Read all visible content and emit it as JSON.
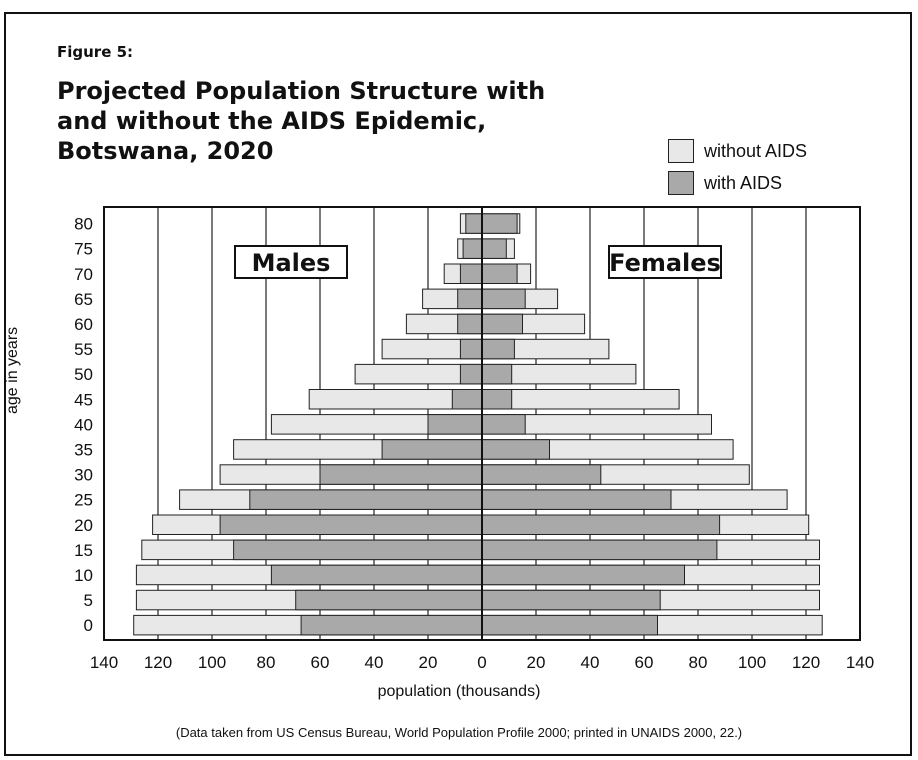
{
  "figure_label": "Figure 5:",
  "title_lines": [
    "Projected Population Structure with",
    "and without the AIDS Epidemic,",
    "Botswana, 2020"
  ],
  "legend": [
    {
      "label": "without AIDS",
      "color": "#e8e8e8"
    },
    {
      "label": "with AIDS",
      "color": "#a9a9a9"
    }
  ],
  "source_note": "(Data taken from US Census Bureau, World Population Profile 2000; printed in UNAIDS 2000, 22.)",
  "chart_data": {
    "type": "bar",
    "subtype": "population-pyramid",
    "title": "Projected Population Structure with and without the AIDS Epidemic, Botswana, 2020",
    "xlabel": "population (thousands)",
    "ylabel": "age in years",
    "xlim": [
      -140,
      140
    ],
    "x_ticks": [
      "140",
      "120",
      "100",
      "80",
      "60",
      "40",
      "20",
      "0",
      "20",
      "40",
      "60",
      "80",
      "100",
      "120",
      "140"
    ],
    "grid": true,
    "legend_position": "top-right",
    "panel_labels": {
      "left": "Males",
      "right": "Females"
    },
    "categories": [
      "0",
      "5",
      "10",
      "15",
      "20",
      "25",
      "30",
      "35",
      "40",
      "45",
      "50",
      "55",
      "60",
      "65",
      "70",
      "75",
      "80"
    ],
    "series": [
      {
        "name": "without AIDS",
        "sex": "Males",
        "values": [
          129,
          128,
          128,
          126,
          122,
          112,
          97,
          92,
          78,
          64,
          47,
          37,
          28,
          22,
          14,
          9,
          8
        ]
      },
      {
        "name": "with AIDS",
        "sex": "Males",
        "values": [
          67,
          69,
          78,
          92,
          97,
          86,
          60,
          37,
          20,
          11,
          8,
          8,
          9,
          9,
          8,
          7,
          6
        ]
      },
      {
        "name": "without AIDS",
        "sex": "Females",
        "values": [
          126,
          125,
          125,
          125,
          121,
          113,
          99,
          93,
          85,
          73,
          57,
          47,
          38,
          28,
          18,
          12,
          14
        ]
      },
      {
        "name": "with AIDS",
        "sex": "Females",
        "values": [
          65,
          66,
          75,
          87,
          88,
          70,
          44,
          25,
          16,
          11,
          11,
          12,
          15,
          16,
          13,
          9,
          13
        ]
      }
    ]
  }
}
